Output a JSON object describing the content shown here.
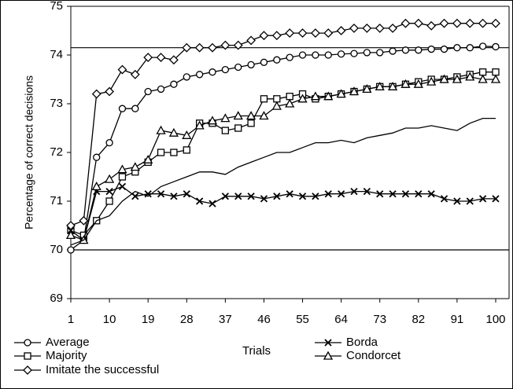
{
  "chart_data": {
    "type": "line",
    "x_label": "Trials",
    "y_label": "Percentage of correct decisions",
    "xlim": [
      1,
      100
    ],
    "ylim": [
      69,
      75
    ],
    "xticks": [
      1,
      10,
      19,
      28,
      37,
      46,
      55,
      64,
      73,
      82,
      91,
      100
    ],
    "yticks": [
      69,
      70,
      71,
      72,
      73,
      74,
      75
    ],
    "reference_lines": [
      70,
      74.15
    ],
    "x": [
      1,
      4,
      7,
      10,
      13,
      16,
      19,
      22,
      25,
      28,
      31,
      34,
      37,
      40,
      43,
      46,
      49,
      52,
      55,
      58,
      61,
      64,
      67,
      70,
      73,
      76,
      79,
      82,
      85,
      88,
      91,
      94,
      97,
      100
    ],
    "series": [
      {
        "name": "Average",
        "color": "#000000",
        "marker": "circle",
        "values": [
          70.0,
          70.2,
          71.9,
          72.2,
          72.9,
          72.9,
          73.25,
          73.3,
          73.4,
          73.55,
          73.6,
          73.65,
          73.7,
          73.75,
          73.8,
          73.85,
          73.9,
          73.95,
          74.0,
          74.0,
          74.0,
          74.02,
          74.03,
          74.05,
          74.05,
          74.08,
          74.1,
          74.1,
          74.12,
          74.12,
          74.15,
          74.15,
          74.18,
          74.17
        ]
      },
      {
        "name": "Majority",
        "color": "#000000",
        "marker": "square",
        "values": [
          70.4,
          70.3,
          70.6,
          71.0,
          71.5,
          71.6,
          71.8,
          72.0,
          72.0,
          72.05,
          72.6,
          72.6,
          72.45,
          72.5,
          72.6,
          73.1,
          73.1,
          73.15,
          73.2,
          73.1,
          73.15,
          73.2,
          73.25,
          73.3,
          73.35,
          73.35,
          73.4,
          73.45,
          73.5,
          73.5,
          73.55,
          73.6,
          73.65,
          73.65
        ]
      },
      {
        "name": "Imitate the successful",
        "color": "#000000",
        "marker": "diamond",
        "values": [
          70.5,
          70.6,
          73.2,
          73.25,
          73.7,
          73.6,
          73.95,
          73.95,
          73.9,
          74.15,
          74.15,
          74.15,
          74.2,
          74.2,
          74.3,
          74.4,
          74.4,
          74.45,
          74.45,
          74.45,
          74.45,
          74.5,
          74.55,
          74.55,
          74.55,
          74.55,
          74.65,
          74.65,
          74.6,
          74.65,
          74.65,
          74.65,
          74.65,
          74.65
        ]
      },
      {
        "name": "Borda",
        "color": "#000000",
        "marker": "x",
        "values": [
          70.4,
          70.2,
          71.2,
          71.2,
          71.3,
          71.1,
          71.15,
          71.15,
          71.1,
          71.15,
          71.0,
          70.95,
          71.1,
          71.1,
          71.1,
          71.05,
          71.1,
          71.15,
          71.1,
          71.1,
          71.15,
          71.15,
          71.2,
          71.2,
          71.15,
          71.15,
          71.15,
          71.15,
          71.15,
          71.05,
          71.0,
          71.0,
          71.05,
          71.05
        ]
      },
      {
        "name": "Condorcet",
        "color": "#000000",
        "marker": "triangle",
        "values": [
          70.3,
          70.2,
          71.3,
          71.45,
          71.65,
          71.7,
          71.85,
          72.45,
          72.4,
          72.35,
          72.55,
          72.65,
          72.7,
          72.75,
          72.75,
          72.75,
          72.95,
          73.0,
          73.1,
          73.15,
          73.15,
          73.2,
          73.25,
          73.3,
          73.35,
          73.35,
          73.4,
          73.4,
          73.45,
          73.5,
          73.5,
          73.55,
          73.5,
          73.5
        ]
      },
      {
        "color": "#000000",
        "marker": "none",
        "values": [
          70.1,
          70.2,
          70.6,
          70.7,
          71.0,
          71.2,
          71.1,
          71.3,
          71.4,
          71.5,
          71.6,
          71.6,
          71.55,
          71.7,
          71.8,
          71.9,
          72.0,
          72.0,
          72.1,
          72.2,
          72.2,
          72.25,
          72.2,
          72.3,
          72.35,
          72.4,
          72.5,
          72.5,
          72.55,
          72.5,
          72.45,
          72.6,
          72.7,
          72.7
        ]
      }
    ]
  }
}
